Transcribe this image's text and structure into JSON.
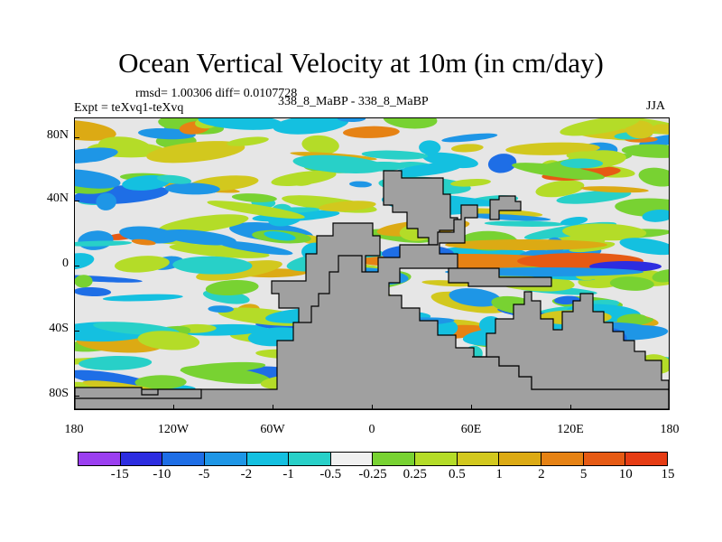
{
  "title": "Ocean Vertical Velocity at 10m (in cm/day)",
  "stats": "rmsd= 1.00306 diff= 0.0107728",
  "experiment": "Expt = teXvq1-teXvq",
  "cases": "338_8_MaBP - 338_8_MaBP",
  "season": "JJA",
  "y_axis_labels": [
    "80N",
    "40N",
    "0",
    "40S",
    "80S"
  ],
  "x_axis_labels": [
    "180",
    "120W",
    "60W",
    "0",
    "60E",
    "120E",
    "180"
  ],
  "colorbar": {
    "labels": [
      "-15",
      "-10",
      "-5",
      "-2",
      "-1",
      "-0.5",
      "-0.25",
      "0.25",
      "0.5",
      "1",
      "2",
      "5",
      "10",
      "15"
    ],
    "colors": [
      "#9b3ff0",
      "#2d2de0",
      "#1e6ee6",
      "#1e96e6",
      "#14c0e0",
      "#28d0c8",
      "#f0f0f0",
      "#78d232",
      "#b4dc28",
      "#d2c81e",
      "#dcaa14",
      "#e68214",
      "#e65a14",
      "#e63c14"
    ]
  },
  "land_color": "#a0a0a0",
  "ocean_neutral_color": "#e6e6e6"
}
